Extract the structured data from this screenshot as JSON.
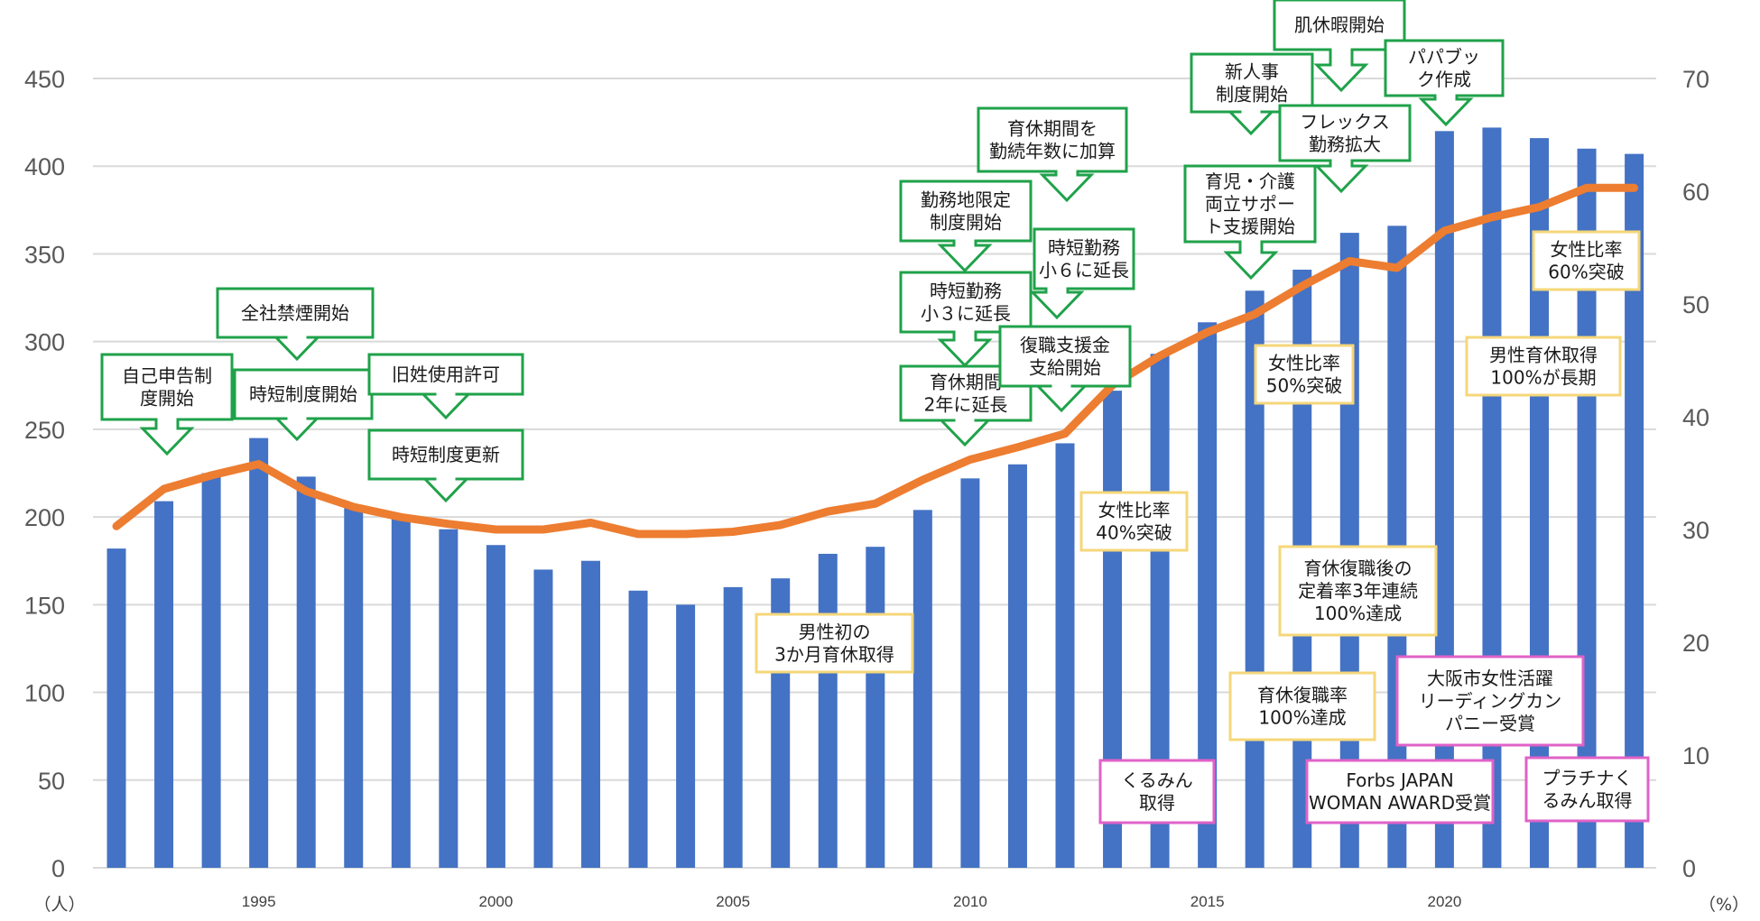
{
  "chart_data": {
    "type": "bar",
    "x_ticks": [
      "1995",
      "2000",
      "2005",
      "2010",
      "2015",
      "2020"
    ],
    "y_left_ticks": [
      "0",
      "50",
      "100",
      "150",
      "200",
      "250",
      "300",
      "350",
      "400",
      "450"
    ],
    "y_right_ticks": [
      "0",
      "10",
      "20",
      "30",
      "40",
      "50",
      "60",
      "70"
    ],
    "y_left_unit": "（人）",
    "y_right_unit": "（%）",
    "ylim_left": [
      0,
      450
    ],
    "ylim_right": [
      0,
      70
    ],
    "grid": true,
    "colors": {
      "bar": "#4472C4",
      "line": "#ED7D31",
      "grid": "#D9D9D9",
      "green": "#1FA24A",
      "yellow": "#F5D77A",
      "pink": "#E062C8"
    },
    "categories": [
      1992,
      1993,
      1994,
      1995,
      1996,
      1997,
      1998,
      1999,
      2000,
      2001,
      2002,
      2003,
      2004,
      2005,
      2006,
      2007,
      2008,
      2009,
      2010,
      2011,
      2012,
      2013,
      2014,
      2015,
      2016,
      2017,
      2018,
      2019,
      2020,
      2021,
      2022,
      2023,
      2024
    ],
    "series": [
      {
        "type": "bar",
        "axis": "left",
        "values": [
          182,
          209,
          225,
          245,
          223,
          205,
          199,
          193,
          184,
          170,
          175,
          158,
          150,
          160,
          165,
          179,
          183,
          204,
          222,
          230,
          242,
          272,
          293,
          311,
          329,
          341,
          362,
          366,
          420,
          422,
          416,
          410,
          407
        ]
      },
      {
        "type": "line",
        "axis": "right",
        "values": [
          30.3,
          33.6,
          34.8,
          35.8,
          33.4,
          32.0,
          31.1,
          30.5,
          30.0,
          30.0,
          30.6,
          29.6,
          29.6,
          29.8,
          30.4,
          31.6,
          32.3,
          34.4,
          36.2,
          37.3,
          38.5,
          42.8,
          45.4,
          47.5,
          49.1,
          51.6,
          53.8,
          53.2,
          56.5,
          57.7,
          58.6,
          60.3,
          60.3
        ]
      }
    ],
    "annotations": [
      {
        "lines": [
          "自己申告制",
          "度開始"
        ],
        "style": "green"
      },
      {
        "lines": [
          "全社禁煙開始"
        ],
        "style": "green"
      },
      {
        "lines": [
          "時短制度開始"
        ],
        "style": "green"
      },
      {
        "lines": [
          "旧姓使用許可"
        ],
        "style": "green"
      },
      {
        "lines": [
          "時短制度更新"
        ],
        "style": "green"
      },
      {
        "lines": [
          "勤務地限定",
          "制度開始"
        ],
        "style": "green"
      },
      {
        "lines": [
          "時短勤務",
          "小３に延長"
        ],
        "style": "green"
      },
      {
        "lines": [
          "育休期間",
          "2年に延長"
        ],
        "style": "green"
      },
      {
        "lines": [
          "育休期間を",
          "勤続年数に加算"
        ],
        "style": "green"
      },
      {
        "lines": [
          "時短勤務",
          "小６に延長"
        ],
        "style": "green"
      },
      {
        "lines": [
          "復職支援金",
          "支給開始"
        ],
        "style": "green"
      },
      {
        "lines": [
          "新人事",
          "制度開始"
        ],
        "style": "green"
      },
      {
        "lines": [
          "育児・介護",
          "両立サポー",
          "ト支援開始"
        ],
        "style": "green"
      },
      {
        "lines": [
          "肌休暇開始"
        ],
        "style": "green"
      },
      {
        "lines": [
          "フレックス",
          "勤務拡大"
        ],
        "style": "green"
      },
      {
        "lines": [
          "パパブッ",
          "ク作成"
        ],
        "style": "green"
      },
      {
        "lines": [
          "男性初の",
          "3か月育休取得"
        ],
        "style": "yellow"
      },
      {
        "lines": [
          "女性比率",
          "40%突破"
        ],
        "style": "yellow"
      },
      {
        "lines": [
          "女性比率",
          "50%突破"
        ],
        "style": "yellow"
      },
      {
        "lines": [
          "育休復職後の",
          "定着率3年連続",
          "100%達成"
        ],
        "style": "yellow"
      },
      {
        "lines": [
          "育休復職率",
          "100%達成"
        ],
        "style": "yellow"
      },
      {
        "lines": [
          "女性比率",
          "60%突破"
        ],
        "style": "yellow"
      },
      {
        "lines": [
          "男性育休取得",
          "100%が長期"
        ],
        "style": "yellow"
      },
      {
        "lines": [
          "くるみん",
          "取得"
        ],
        "style": "pink"
      },
      {
        "lines": [
          "大阪市女性活躍",
          "リーディングカン",
          "パニー受賞"
        ],
        "style": "pink"
      },
      {
        "lines": [
          "Forbs JAPAN",
          "WOMAN AWARD受賞"
        ],
        "style": "pink"
      },
      {
        "lines": [
          "プラチナく",
          "るみん取得"
        ],
        "style": "pink"
      }
    ]
  }
}
